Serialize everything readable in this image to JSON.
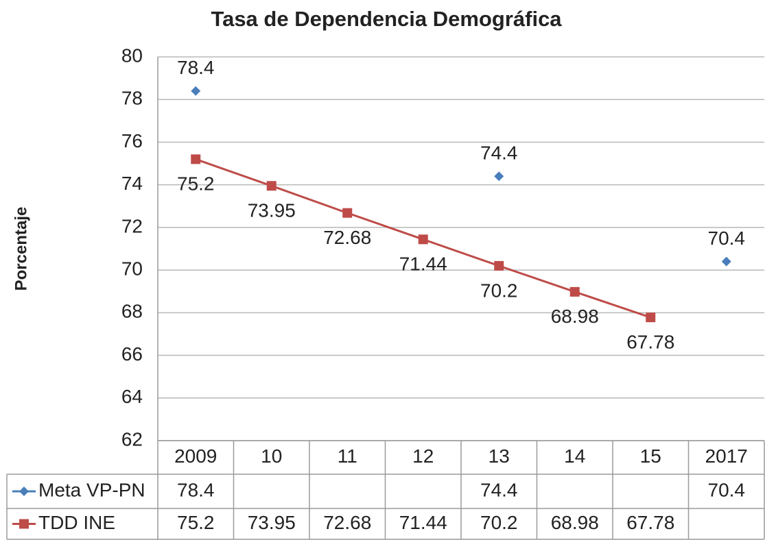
{
  "chart_data": {
    "type": "line",
    "title": "Tasa de Dependencia Demográfica",
    "y_label": "Porcentaje",
    "categories": [
      "2009",
      "10",
      "11",
      "12",
      "13",
      "14",
      "15",
      "2017"
    ],
    "series": [
      {
        "name": "Meta VP-PN",
        "color": "#4a7ebb",
        "marker": "diamond",
        "line": false,
        "values": [
          78.4,
          null,
          null,
          null,
          74.4,
          null,
          null,
          70.4
        ]
      },
      {
        "name": "TDD INE",
        "color": "#be4b48",
        "marker": "square",
        "line": true,
        "values": [
          75.2,
          73.95,
          72.68,
          71.44,
          70.2,
          68.98,
          67.78,
          null
        ]
      }
    ],
    "ylim": [
      62,
      80
    ],
    "yticks": [
      62,
      64,
      66,
      68,
      70,
      72,
      74,
      76,
      78,
      80
    ],
    "grid": true,
    "data_table": true
  }
}
